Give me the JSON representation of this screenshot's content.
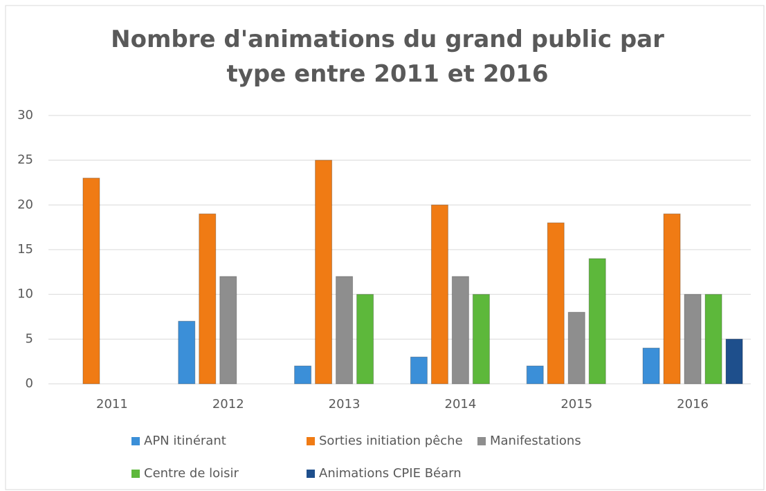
{
  "chart_data": {
    "type": "bar",
    "title": "Nombre d'animations du grand public par type entre 2011 et 2016",
    "categories": [
      "2011",
      "2012",
      "2013",
      "2014",
      "2015",
      "2016"
    ],
    "series": [
      {
        "name": "APN itinérant",
        "color": "#3b8fd8",
        "values": [
          null,
          7,
          2,
          3,
          2,
          4
        ]
      },
      {
        "name": "Sorties initiation pêche",
        "color": "#f07b14",
        "values": [
          23,
          19,
          25,
          20,
          18,
          19
        ]
      },
      {
        "name": "Manifestations",
        "color": "#8e8e8e",
        "values": [
          null,
          12,
          12,
          12,
          8,
          10
        ]
      },
      {
        "name": "Centre de loisir",
        "color": "#5db83b",
        "values": [
          null,
          null,
          10,
          10,
          14,
          10
        ]
      },
      {
        "name": "Animations CPIE Béarn",
        "color": "#1e4f8c",
        "values": [
          null,
          null,
          null,
          null,
          null,
          5
        ]
      }
    ],
    "ylim": [
      0,
      30
    ],
    "yticks": [
      0,
      5,
      10,
      15,
      20,
      25,
      30
    ],
    "grid": true,
    "legend": "bottom"
  }
}
